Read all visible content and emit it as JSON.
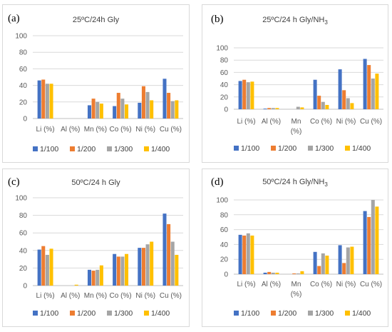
{
  "colors": {
    "s1": "#4472c4",
    "s2": "#ed7d31",
    "s3": "#a5a5a5",
    "s4": "#ffc000",
    "grid": "#d9d9d9",
    "axis": "#bfbfbf"
  },
  "chart_data": [
    {
      "type": "bar",
      "label": "(a)",
      "title": "25ºC/24h Gly",
      "title_sub": "",
      "categories": [
        [
          "Li (%)"
        ],
        [
          "Al (%)"
        ],
        [
          "Mn (%)"
        ],
        [
          "Co (%)"
        ],
        [
          "Ni (%)"
        ],
        [
          "Cu (%)"
        ]
      ],
      "ylim": [
        0,
        100
      ],
      "yticks": [
        0,
        20,
        40,
        60,
        80,
        100
      ],
      "grid": true,
      "legend": "bottom",
      "series": [
        {
          "name": "1/100",
          "values": [
            46,
            0,
            16,
            15,
            19,
            48
          ]
        },
        {
          "name": "1/200",
          "values": [
            47,
            0,
            24,
            31,
            39,
            31
          ]
        },
        {
          "name": "1/300",
          "values": [
            42,
            0,
            20,
            24,
            32,
            21
          ]
        },
        {
          "name": "1/400",
          "values": [
            42,
            0,
            18,
            17,
            22,
            22
          ]
        }
      ]
    },
    {
      "type": "bar",
      "label": "(b)",
      "title": "25ºC/24 h Gly/NH",
      "title_sub": "3",
      "categories": [
        [
          "Li (%)"
        ],
        [
          "Al (%)"
        ],
        [
          "Mn",
          "(%)"
        ],
        [
          "Co (%)"
        ],
        [
          "Ni (%)"
        ],
        [
          "Cu (%)"
        ]
      ],
      "ylim": [
        0,
        100
      ],
      "yticks": [
        0,
        20,
        40,
        60,
        80,
        100
      ],
      "grid": true,
      "legend": "bottom",
      "series": [
        {
          "name": "1/100",
          "values": [
            46,
            1,
            0,
            48,
            65,
            82
          ]
        },
        {
          "name": "1/200",
          "values": [
            48,
            2,
            0,
            22,
            31,
            72
          ]
        },
        {
          "name": "1/300",
          "values": [
            44,
            2,
            4,
            12,
            18,
            50
          ]
        },
        {
          "name": "1/400",
          "values": [
            45,
            2,
            3,
            7,
            10,
            58
          ]
        }
      ]
    },
    {
      "type": "bar",
      "label": "(c)",
      "title": "50ºC/24 h Gly",
      "title_sub": "",
      "categories": [
        [
          "Li (%)"
        ],
        [
          "Al (%)"
        ],
        [
          "Mn (%)"
        ],
        [
          "Co (%)"
        ],
        [
          "Ni (%)"
        ],
        [
          "Cu (%)"
        ]
      ],
      "ylim": [
        0,
        100
      ],
      "yticks": [
        0,
        20,
        40,
        60,
        80,
        100
      ],
      "grid": true,
      "legend": "bottom",
      "series": [
        {
          "name": "1/100",
          "values": [
            41,
            0,
            18,
            36,
            43,
            82
          ]
        },
        {
          "name": "1/200",
          "values": [
            45,
            0,
            17,
            33,
            43,
            70
          ]
        },
        {
          "name": "1/300",
          "values": [
            35,
            0,
            18,
            33,
            47,
            50
          ]
        },
        {
          "name": "1/400",
          "values": [
            42,
            1,
            23,
            36,
            50,
            35
          ]
        }
      ]
    },
    {
      "type": "bar",
      "label": "(d)",
      "title": "50ºC/24 h Gly/NH",
      "title_sub": "3",
      "categories": [
        [
          "Li (%)"
        ],
        [
          "Al (%)"
        ],
        [
          "Mn",
          "(%)"
        ],
        [
          "Co (%)"
        ],
        [
          "Ni (%)"
        ],
        [
          "Cu (%)"
        ]
      ],
      "ylim": [
        0,
        100
      ],
      "yticks": [
        0,
        20,
        40,
        60,
        80,
        100
      ],
      "grid": true,
      "legend": "bottom",
      "series": [
        {
          "name": "1/100",
          "values": [
            53,
            2,
            0,
            30,
            39,
            85
          ]
        },
        {
          "name": "1/200",
          "values": [
            52,
            3,
            1,
            11,
            15,
            77
          ]
        },
        {
          "name": "1/300",
          "values": [
            55,
            2,
            1,
            28,
            36,
            100
          ]
        },
        {
          "name": "1/400",
          "values": [
            52,
            2,
            4,
            25,
            37,
            91
          ]
        }
      ]
    }
  ]
}
